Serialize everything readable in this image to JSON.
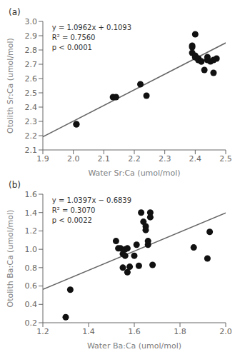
{
  "chart_data": [
    {
      "type": "scatter",
      "title": "(a)",
      "xlabel": "Water Sr:Ca (umol/mol)",
      "ylabel": "Otolith Sr:Ca (umol/mol)",
      "annotations": [
        "y = 1.0962x + 0.1093",
        "R² = 0.7560",
        "p < 0.0001"
      ],
      "xlim": [
        1.9,
        2.5
      ],
      "ylim": [
        2.1,
        3.0
      ],
      "xticks": [
        1.9,
        {
          "value": 2.0,
          "label": "2.0"
        },
        2.1,
        2.2,
        2.3,
        2.4,
        2.5
      ],
      "yticks": [
        2.1,
        2.2,
        2.3,
        2.4,
        2.5,
        2.6,
        2.7,
        2.8,
        2.9,
        {
          "value": 3.0,
          "label": "3.0"
        }
      ],
      "series": [
        {
          "type": "scatter",
          "color": "#111111",
          "x": [
            2.01,
            2.01,
            2.13,
            2.14,
            2.22,
            2.24,
            2.39,
            2.39,
            2.39,
            2.4,
            2.4,
            2.4,
            2.4,
            2.41,
            2.41,
            2.41,
            2.42,
            2.42,
            2.43,
            2.44,
            2.44,
            2.45,
            2.46,
            2.46,
            2.47
          ],
          "values": [
            2.28,
            2.28,
            2.47,
            2.47,
            2.56,
            2.48,
            2.83,
            2.82,
            2.78,
            2.91,
            2.76,
            2.75,
            2.75,
            2.74,
            2.74,
            2.73,
            2.72,
            2.72,
            2.66,
            2.75,
            2.73,
            2.72,
            2.64,
            2.73,
            2.74
          ]
        },
        {
          "type": "line",
          "color": "#666666",
          "x": [
            1.9,
            2.5
          ],
          "values": [
            2.19208,
            2.8498
          ]
        }
      ]
    },
    {
      "type": "scatter",
      "title": "(b)",
      "xlabel": "Water Ba:Ca (umol/mol)",
      "ylabel": "Otolith Ba:Ca (umol/mol)",
      "annotations": [
        "y = 1.0397x − 0.6839",
        "R² = 0.3070",
        "p < 0.0022"
      ],
      "xlim": [
        1.2,
        2.0
      ],
      "ylim": [
        0.2,
        1.6
      ],
      "xticks": [
        1.2,
        1.4,
        1.6,
        1.8,
        {
          "value": 2.0,
          "label": "2.0"
        }
      ],
      "yticks": [
        0.2,
        0.4,
        0.6,
        0.8,
        {
          "value": 1.0,
          "label": "1.0"
        },
        1.2,
        1.4,
        1.6
      ],
      "series": [
        {
          "type": "scatter",
          "color": "#111111",
          "x": [
            1.3,
            1.32,
            1.52,
            1.53,
            1.54,
            1.55,
            1.55,
            1.56,
            1.56,
            1.57,
            1.57,
            1.58,
            1.6,
            1.61,
            1.62,
            1.63,
            1.64,
            1.65,
            1.65,
            1.66,
            1.66,
            1.67,
            1.67,
            1.68,
            1.86,
            1.92,
            1.93
          ],
          "values": [
            0.26,
            0.56,
            1.09,
            1.01,
            1.01,
            0.8,
            0.95,
            1.0,
            0.93,
            1.01,
            0.75,
            0.81,
            0.93,
            1.05,
            0.82,
            1.4,
            1.3,
            1.25,
            1.21,
            1.05,
            1.09,
            1.35,
            1.4,
            0.83,
            1.02,
            0.9,
            1.19
          ]
        },
        {
          "type": "line",
          "color": "#666666",
          "x": [
            1.2,
            2.0
          ],
          "values": [
            0.56374,
            1.3955
          ]
        }
      ]
    }
  ]
}
